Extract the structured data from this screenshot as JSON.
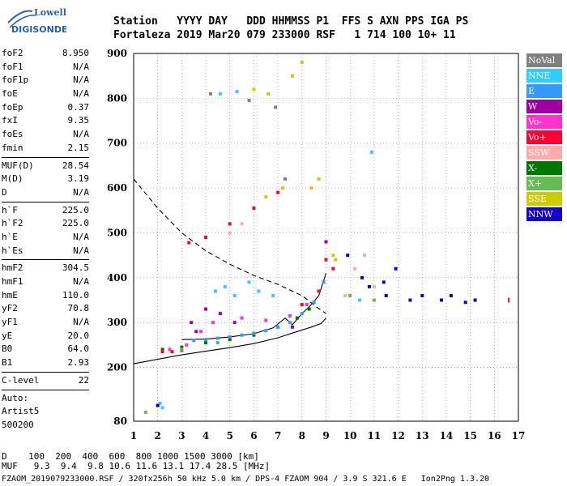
{
  "logo": {
    "line1": "Lowell",
    "line2": "DIGISONDE"
  },
  "header": {
    "line1": "Station   YYYY DAY   DDD HHMMSS P1  FFS S AXN PPS IGA PS",
    "line2": "Fortaleza 2019 Mar20 079 233000 RSF   1 714 100 10+ 11"
  },
  "params": [
    {
      "name": "foF2",
      "value": "8.950"
    },
    {
      "name": "foF1",
      "value": "N/A"
    },
    {
      "name": "foF1p",
      "value": "N/A"
    },
    {
      "name": "foE",
      "value": "N/A"
    },
    {
      "name": "foEp",
      "value": "0.37"
    },
    {
      "name": "fxI",
      "value": "9.35"
    },
    {
      "name": "foEs",
      "value": "N/A"
    },
    {
      "name": "fmin",
      "value": "2.15"
    },
    {
      "sep": true
    },
    {
      "name": "MUF(D)",
      "value": "28.54"
    },
    {
      "name": "M(D)",
      "value": "3.19"
    },
    {
      "name": "D",
      "value": "N/A"
    },
    {
      "sep": true
    },
    {
      "name": "h`F",
      "value": "225.0"
    },
    {
      "name": "h`F2",
      "value": "225.0"
    },
    {
      "name": "h`E",
      "value": "N/A"
    },
    {
      "name": "h`Es",
      "value": "N/A"
    },
    {
      "sep": true
    },
    {
      "name": "hmF2",
      "value": "304.5"
    },
    {
      "name": "hmF1",
      "value": "N/A"
    },
    {
      "name": "hmE",
      "value": "110.0"
    },
    {
      "name": "yF2",
      "value": "70.8"
    },
    {
      "name": "yF1",
      "value": "N/A"
    },
    {
      "name": "yE",
      "value": "20.0"
    },
    {
      "name": "B0",
      "value": "64.0"
    },
    {
      "name": "B1",
      "value": "2.93"
    },
    {
      "sep": true
    },
    {
      "name": "C-level",
      "value": "22"
    },
    {
      "sep": true
    },
    {
      "name": "Auto:",
      "value": ""
    },
    {
      "name": "Artist5",
      "value": ""
    },
    {
      "name": "500200",
      "value": ""
    }
  ],
  "legend": [
    {
      "label": "NoVal",
      "color": "#808080"
    },
    {
      "label": "NNE",
      "color": "#33ccff"
    },
    {
      "label": "E",
      "color": "#3399ff"
    },
    {
      "label": "W",
      "color": "#a000a0"
    },
    {
      "label": "Vo-",
      "color": "#ff33cc"
    },
    {
      "label": "Vo+",
      "color": "#ff0033"
    },
    {
      "label": "SSW",
      "color": "#ffaaaa"
    },
    {
      "label": "X-",
      "color": "#007700"
    },
    {
      "label": "X+",
      "color": "#66bb55"
    },
    {
      "label": "SSE",
      "color": "#cccc00"
    },
    {
      "label": "NNW",
      "color": "#1100cc"
    }
  ],
  "chart_data": {
    "type": "scatter",
    "xlim": [
      1,
      17
    ],
    "ylim": [
      80,
      900
    ],
    "x_ticks": [
      1,
      2,
      3,
      4,
      5,
      6,
      7,
      8,
      9,
      10,
      11,
      12,
      13,
      14,
      15,
      16,
      17
    ],
    "y_ticks": [
      80,
      200,
      300,
      400,
      500,
      600,
      700,
      800,
      900
    ],
    "grid": "dotted",
    "legend_position": "right",
    "series": [
      {
        "name": "X-",
        "color": "#007700",
        "points": [
          [
            2.2,
            240
          ],
          [
            3,
            245
          ],
          [
            4,
            255
          ],
          [
            5,
            262
          ],
          [
            6,
            272
          ],
          [
            7,
            290
          ],
          [
            7.8,
            310
          ],
          [
            8.3,
            330
          ]
        ]
      },
      {
        "name": "E",
        "color": "#3399ff",
        "points": [
          [
            3.5,
            260
          ],
          [
            4,
            262
          ],
          [
            4.5,
            265
          ],
          [
            5,
            268
          ],
          [
            5.5,
            272
          ],
          [
            6,
            276
          ],
          [
            6.5,
            282
          ],
          [
            7,
            290
          ],
          [
            7.5,
            300
          ],
          [
            8,
            320
          ],
          [
            8.5,
            345
          ],
          [
            8.9,
            390
          ]
        ]
      },
      {
        "name": "Vo+",
        "color": "#ff0033",
        "points": [
          [
            2.2,
            235
          ],
          [
            2.6,
            235
          ],
          [
            3,
            238
          ],
          [
            3.3,
            478
          ],
          [
            4,
            490
          ],
          [
            5,
            520
          ],
          [
            6,
            555
          ],
          [
            7,
            590
          ],
          [
            8,
            340
          ],
          [
            8.7,
            370
          ],
          [
            9.0,
            440
          ],
          [
            9.3,
            420
          ]
        ]
      },
      {
        "name": "Vo-",
        "color": "#ff33cc",
        "points": [
          [
            2.5,
            240
          ],
          [
            3.2,
            250
          ],
          [
            3.8,
            280
          ],
          [
            4.3,
            300
          ],
          [
            5.5,
            310
          ],
          [
            6.5,
            305
          ],
          [
            7.5,
            315
          ],
          [
            8.2,
            340
          ]
        ]
      },
      {
        "name": "W",
        "color": "#a000a0",
        "points": [
          [
            3.4,
            300
          ],
          [
            4.0,
            330
          ],
          [
            4.6,
            320
          ],
          [
            5.2,
            300
          ],
          [
            9.0,
            480
          ],
          [
            7.6,
            290
          ],
          [
            3.6,
            280
          ]
        ]
      },
      {
        "name": "NNE",
        "color": "#33ccff",
        "points": [
          [
            4.4,
            370
          ],
          [
            4.8,
            380
          ],
          [
            5.2,
            360
          ],
          [
            5.8,
            390
          ],
          [
            6.2,
            370
          ],
          [
            6.8,
            360
          ],
          [
            4.6,
            810
          ],
          [
            5.3,
            815
          ],
          [
            10.9,
            680
          ],
          [
            10.4,
            350
          ],
          [
            2.1,
            120
          ],
          [
            2.2,
            110
          ]
        ]
      },
      {
        "name": "SSE",
        "color": "#cccc00",
        "points": [
          [
            6.0,
            820
          ],
          [
            6.6,
            810
          ],
          [
            7.6,
            850
          ],
          [
            8.0,
            880
          ],
          [
            8.4,
            600
          ],
          [
            8.7,
            620
          ],
          [
            9.3,
            450
          ],
          [
            9.4,
            440
          ],
          [
            7.2,
            600
          ],
          [
            6.5,
            580
          ]
        ]
      },
      {
        "name": "SSW",
        "color": "#ffaaaa",
        "points": [
          [
            10.2,
            420
          ],
          [
            10.6,
            450
          ],
          [
            11.0,
            380
          ],
          [
            9.8,
            360
          ],
          [
            5.0,
            500
          ],
          [
            5.5,
            520
          ]
        ]
      },
      {
        "name": "X+",
        "color": "#66bb55",
        "points": [
          [
            1.5,
            100
          ],
          [
            3.0,
            240
          ],
          [
            4.5,
            255
          ],
          [
            10.0,
            360
          ],
          [
            11.0,
            350
          ]
        ]
      },
      {
        "name": "NNW",
        "color": "#1100cc",
        "points": [
          [
            10.5,
            400
          ],
          [
            10.8,
            380
          ],
          [
            11.5,
            360
          ],
          [
            12.5,
            350
          ],
          [
            13.0,
            360
          ],
          [
            13.8,
            350
          ],
          [
            14.2,
            360
          ],
          [
            14.8,
            345
          ],
          [
            15.2,
            350
          ],
          [
            11.9,
            420
          ],
          [
            11.4,
            390
          ],
          [
            9.9,
            450
          ],
          [
            2.0,
            115
          ]
        ]
      },
      {
        "name": "NoVal",
        "color": "#808080",
        "points": [
          [
            4.2,
            810
          ],
          [
            5.8,
            795
          ],
          [
            6.9,
            780
          ],
          [
            7.3,
            620
          ]
        ]
      }
    ],
    "lines": [
      {
        "style": "dashed",
        "points": [
          [
            1,
            620
          ],
          [
            2,
            555
          ],
          [
            3,
            500
          ],
          [
            4,
            460
          ],
          [
            5,
            430
          ],
          [
            6,
            405
          ],
          [
            7,
            385
          ],
          [
            8,
            360
          ],
          [
            8.6,
            335
          ],
          [
            9,
            320
          ]
        ]
      },
      {
        "style": "solid",
        "points": [
          [
            1,
            208
          ],
          [
            2,
            218
          ],
          [
            3,
            228
          ],
          [
            4,
            236
          ],
          [
            5,
            244
          ],
          [
            6,
            253
          ],
          [
            7,
            266
          ],
          [
            7.8,
            280
          ],
          [
            8.4,
            290
          ],
          [
            8.8,
            298
          ],
          [
            9.0,
            310
          ]
        ]
      },
      {
        "style": "solid",
        "points": [
          [
            3.0,
            262
          ],
          [
            4.0,
            263
          ],
          [
            5.0,
            268
          ],
          [
            6.0,
            275
          ],
          [
            6.8,
            288
          ],
          [
            7.3,
            310
          ],
          [
            7.6,
            295
          ],
          [
            8.0,
            320
          ],
          [
            8.3,
            335
          ],
          [
            8.7,
            360
          ],
          [
            9.0,
            410
          ]
        ]
      }
    ],
    "red_tick": {
      "x": 16.6,
      "y": 350
    }
  },
  "footer": {
    "d_label": "D",
    "d_values": "    100  200  400  600  800 1000 1500 3000 [km]",
    "muf_label": "MUF",
    "muf_values": "   9.3  9.4  9.8 10.6 11.6 13.1 17.4 28.5 [MHz]",
    "file": "FZAOM_2019079233000.RSF / 320fx256h 50 kHz 5.0 km / DPS-4 FZAOM 904 / 3.9 S 321.6 E   Ion2Png 1.3.20"
  }
}
